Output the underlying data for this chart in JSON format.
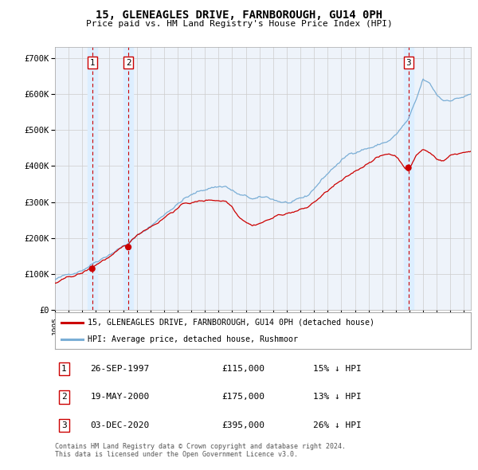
{
  "title": "15, GLENEAGLES DRIVE, FARNBOROUGH, GU14 0PH",
  "subtitle": "Price paid vs. HM Land Registry's House Price Index (HPI)",
  "legend_line1": "15, GLENEAGLES DRIVE, FARNBOROUGH, GU14 0PH (detached house)",
  "legend_line2": "HPI: Average price, detached house, Rushmoor",
  "footnote1": "Contains HM Land Registry data © Crown copyright and database right 2024.",
  "footnote2": "This data is licensed under the Open Government Licence v3.0.",
  "transactions": [
    {
      "num": 1,
      "date": "26-SEP-1997",
      "price": 115000,
      "hpi_pct": "15% ↓ HPI",
      "x_year": 1997.73
    },
    {
      "num": 2,
      "date": "19-MAY-2000",
      "price": 175000,
      "hpi_pct": "13% ↓ HPI",
      "x_year": 2000.38
    },
    {
      "num": 3,
      "date": "03-DEC-2020",
      "price": 395000,
      "hpi_pct": "26% ↓ HPI",
      "x_year": 2020.92
    }
  ],
  "red_line_color": "#cc0000",
  "blue_line_color": "#7aaed6",
  "shade_color": "#ddeeff",
  "grid_color": "#cccccc",
  "dashed_color": "#cc0000",
  "ylim": [
    0,
    730000
  ],
  "xlim_start": 1995.0,
  "xlim_end": 2025.5,
  "yticks": [
    0,
    100000,
    200000,
    300000,
    400000,
    500000,
    600000,
    700000
  ],
  "ytick_labels": [
    "£0",
    "£100K",
    "£200K",
    "£300K",
    "£400K",
    "£500K",
    "£600K",
    "£700K"
  ],
  "xticks": [
    1995,
    1996,
    1997,
    1998,
    1999,
    2000,
    2001,
    2002,
    2003,
    2004,
    2005,
    2006,
    2007,
    2008,
    2009,
    2010,
    2011,
    2012,
    2013,
    2014,
    2015,
    2016,
    2017,
    2018,
    2019,
    2020,
    2021,
    2022,
    2023,
    2024,
    2025
  ],
  "background_color": "#ffffff",
  "plot_bg_color": "#eef3fa"
}
